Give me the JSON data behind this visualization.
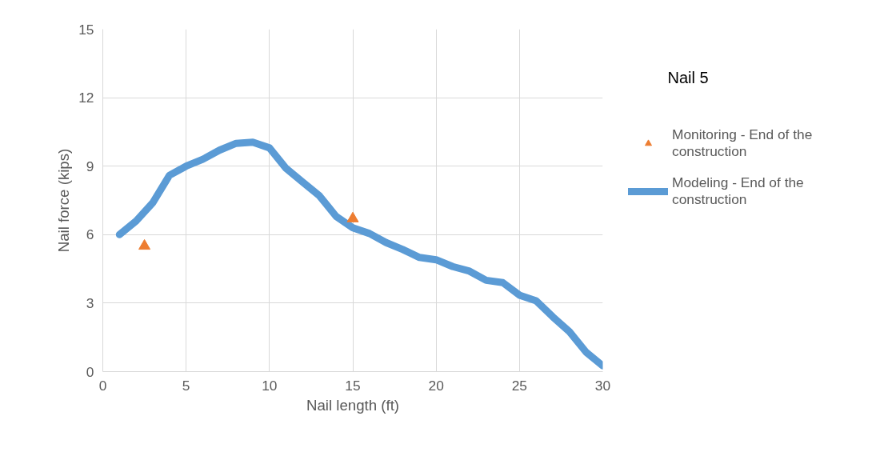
{
  "chart_data": {
    "type": "line",
    "title": "Nail 5",
    "xlabel": "Nail length (ft)",
    "ylabel": "Nail force (kips)",
    "xlim": [
      0,
      30
    ],
    "xticks": [
      0,
      5,
      10,
      15,
      20,
      25,
      30
    ],
    "ylim": [
      0,
      15
    ],
    "yticks": [
      0,
      3,
      6,
      9,
      12,
      15
    ],
    "grid": true,
    "legend": "right",
    "series": [
      {
        "name": "Monitoring - End of the construction",
        "type": "scatter",
        "marker": "triangle",
        "color": "#ed7d31",
        "x": [
          2.5,
          15
        ],
        "values": [
          5.5,
          6.7
        ]
      },
      {
        "name": "Modeling - End of the construction",
        "type": "line",
        "color": "#5b9bd5",
        "x": [
          1,
          2,
          3,
          4,
          5,
          6,
          7,
          8,
          9,
          10,
          11,
          12,
          13,
          14,
          15,
          16,
          17,
          18,
          19,
          20,
          21,
          22,
          23,
          24,
          25,
          26,
          27,
          28,
          29,
          30
        ],
        "values": [
          6.0,
          6.6,
          7.4,
          8.6,
          9.0,
          9.3,
          9.7,
          10.0,
          10.05,
          9.8,
          8.9,
          8.3,
          7.7,
          6.8,
          6.3,
          6.05,
          5.65,
          5.35,
          5.0,
          4.9,
          4.6,
          4.4,
          4.0,
          3.9,
          3.35,
          3.1,
          2.4,
          1.75,
          0.85,
          0.25
        ]
      }
    ]
  }
}
